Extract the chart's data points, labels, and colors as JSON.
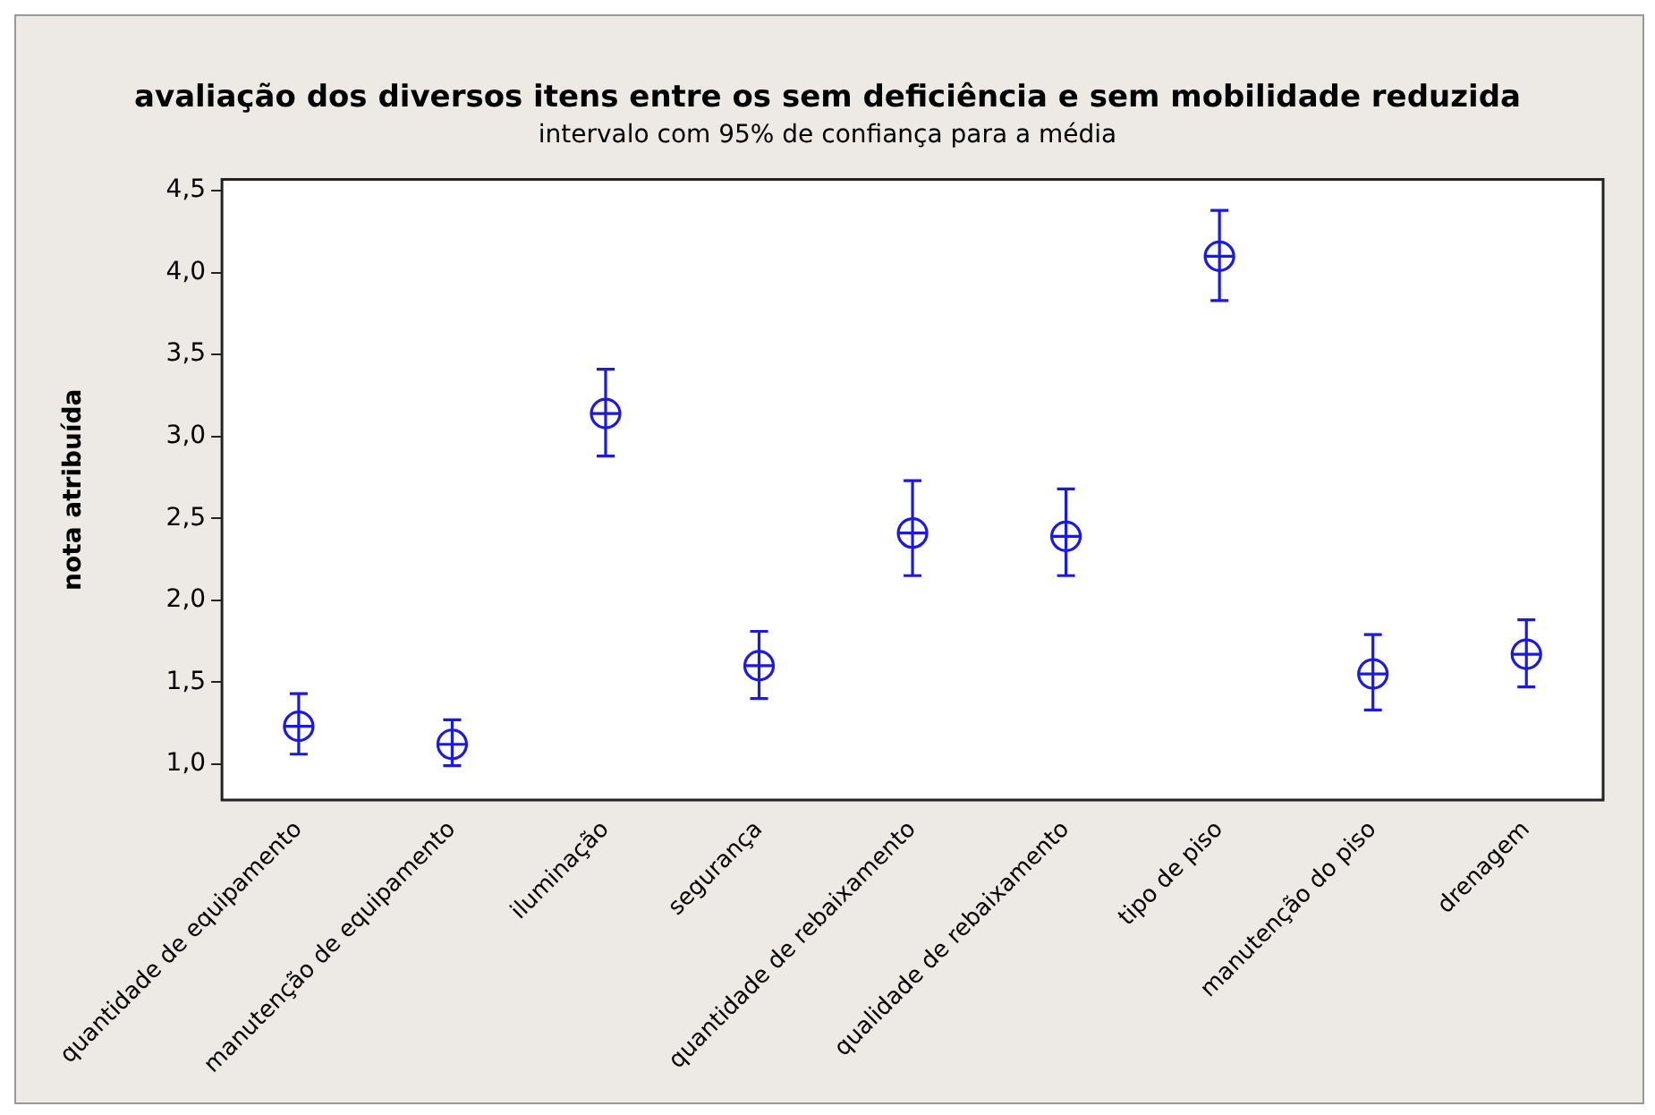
{
  "chart_data": {
    "type": "scatter",
    "title": "avaliação dos diversos itens entre os sem deficiência e sem mobilidade reduzida",
    "subtitle": "intervalo com 95% de confiança para a média",
    "ylabel": "nota atribuída",
    "categories": [
      "quantidade de equipamento",
      "manutenção de equipamento",
      "iluminação",
      "segurança",
      "quantidade de rebaixamento",
      "qualidade de rebaixamento",
      "tipo de piso",
      "manutenção do piso",
      "drenagem"
    ],
    "values": [
      1.23,
      1.12,
      3.14,
      1.6,
      2.41,
      2.39,
      4.1,
      1.55,
      1.67
    ],
    "errors": [
      [
        1.06,
        1.43
      ],
      [
        0.99,
        1.27
      ],
      [
        2.88,
        3.41
      ],
      [
        1.4,
        1.81
      ],
      [
        2.15,
        2.73
      ],
      [
        2.15,
        2.68
      ],
      [
        3.83,
        4.38
      ],
      [
        1.33,
        1.79
      ],
      [
        1.47,
        1.88
      ]
    ],
    "color": "#1a1ae0",
    "marker": "circle",
    "grid": false,
    "legend": false,
    "ylim": [
      0.78,
      4.57
    ],
    "yticks": [
      {
        "value": 1,
        "label": "1,0"
      },
      {
        "value": 1.5,
        "label": "1,5"
      },
      {
        "value": 2,
        "label": "2,0"
      },
      {
        "value": 2.5,
        "label": "2,5"
      },
      {
        "value": 3,
        "label": "3,0"
      },
      {
        "value": 3.5,
        "label": "3,5"
      },
      {
        "value": 4,
        "label": "4,0"
      },
      {
        "value": 4.5,
        "label": "4,5"
      }
    ]
  }
}
